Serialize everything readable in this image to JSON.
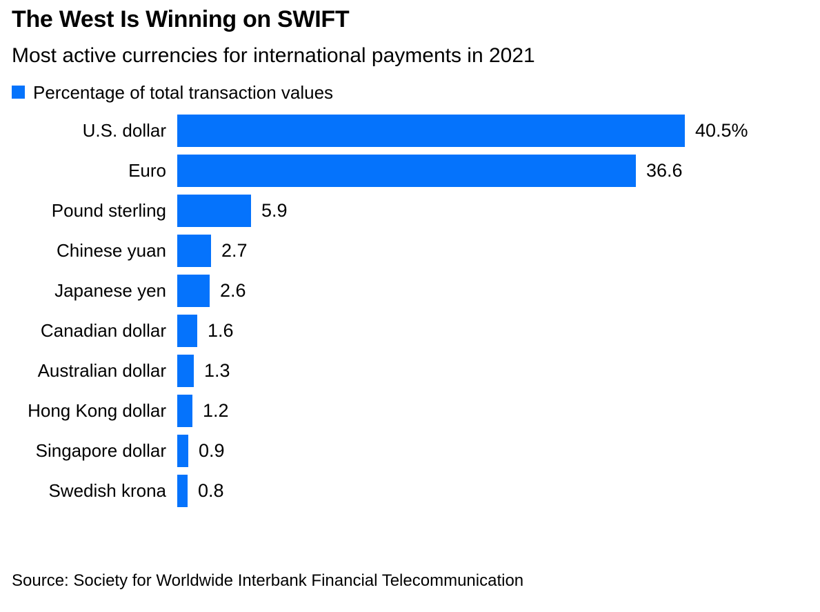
{
  "header": {
    "title": "The West Is Winning on SWIFT",
    "subtitle": "Most active currencies for international payments in 2021"
  },
  "legend": {
    "label": "Percentage of total transaction values",
    "swatch_color": "#0573fc"
  },
  "chart_data": {
    "type": "bar",
    "orientation": "horizontal",
    "title": "The West Is Winning on SWIFT",
    "subtitle": "Most active currencies for international payments in 2021",
    "series_name": "Percentage of total transaction values",
    "categories": [
      "U.S. dollar",
      "Euro",
      "Pound sterling",
      "Chinese yuan",
      "Japanese yen",
      "Canadian dollar",
      "Australian dollar",
      "Hong Kong dollar",
      "Singapore dollar",
      "Swedish krona"
    ],
    "values": [
      40.5,
      36.6,
      5.9,
      2.7,
      2.6,
      1.6,
      1.3,
      1.2,
      0.9,
      0.8
    ],
    "value_labels": [
      "40.5%",
      "36.6",
      "5.9",
      "2.7",
      "2.6",
      "1.6",
      "1.3",
      "1.2",
      "0.9",
      "0.8"
    ],
    "unit": "percent",
    "xlim": [
      0,
      40.5
    ],
    "grid": false,
    "axis_lines": "none",
    "legend_position": "top-left",
    "bar_color": "#0573fc",
    "label_color": "#000000",
    "background_color": "#ffffff"
  },
  "footer": {
    "source": "Source: Society for Worldwide Interbank Financial Telecommunication"
  }
}
